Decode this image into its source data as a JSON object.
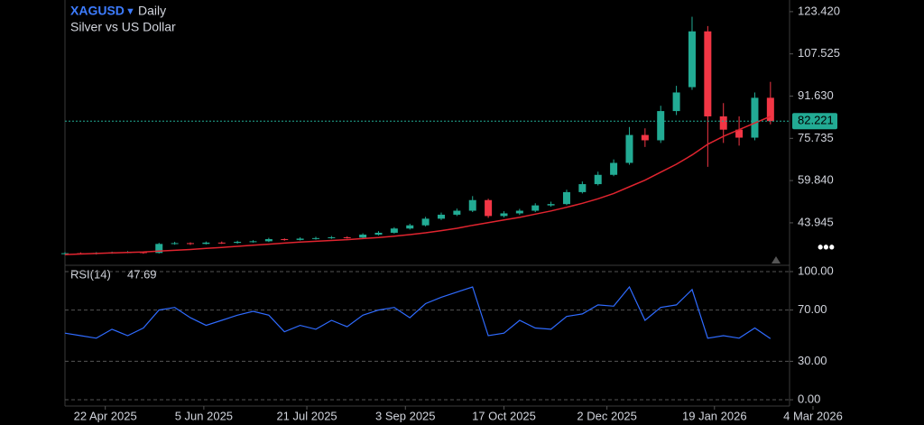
{
  "chart_data": [
    {
      "type": "candlestick",
      "title": "XAGUSD",
      "interval": "Daily",
      "subtitle": "Silver vs US Dollar",
      "x": [
        "2025-04-04",
        "2025-04-11",
        "2025-04-18",
        "2025-04-25",
        "2025-05-02",
        "2025-05-09",
        "2025-05-16",
        "2025-05-23",
        "2025-05-30",
        "2025-06-06",
        "2025-06-13",
        "2025-06-20",
        "2025-06-27",
        "2025-07-04",
        "2025-07-11",
        "2025-07-18",
        "2025-07-25",
        "2025-08-01",
        "2025-08-08",
        "2025-08-15",
        "2025-08-22",
        "2025-08-29",
        "2025-09-05",
        "2025-09-12",
        "2025-09-19",
        "2025-09-26",
        "2025-10-03",
        "2025-10-10",
        "2025-10-17",
        "2025-10-24",
        "2025-10-31",
        "2025-11-07",
        "2025-11-14",
        "2025-11-21",
        "2025-11-28",
        "2025-12-05",
        "2025-12-12",
        "2025-12-19",
        "2025-12-26",
        "2026-01-02",
        "2026-01-09",
        "2026-01-16",
        "2026-01-23",
        "2026-01-30",
        "2026-02-06",
        "2026-02-13"
      ],
      "open": [
        32.2,
        32.5,
        32.4,
        32.6,
        32.8,
        32.9,
        32.6,
        36.0,
        36.3,
        36.0,
        36.5,
        36.4,
        36.8,
        37.0,
        37.8,
        37.5,
        38.0,
        38.2,
        38.5,
        38.4,
        39.5,
        40.2,
        41.8,
        43.0,
        45.5,
        47.0,
        48.5,
        52.5,
        46.5,
        47.5,
        48.5,
        50.5,
        51.0,
        55.5,
        58.5,
        62.0,
        66.5,
        77.0,
        75.0,
        86.0,
        95.0,
        116.0,
        84.0,
        79.0,
        76.0,
        91.0
      ],
      "high": [
        32.9,
        32.8,
        32.9,
        33.1,
        33.3,
        33.2,
        36.4,
        36.8,
        36.6,
        36.9,
        36.9,
        37.2,
        37.4,
        38.3,
        38.1,
        38.5,
        38.7,
        39.0,
        38.9,
        40.0,
        40.8,
        42.3,
        43.6,
        46.2,
        47.8,
        49.3,
        54.0,
        53.0,
        48.3,
        49.2,
        51.3,
        51.9,
        56.4,
        59.5,
        63.2,
        67.8,
        80.0,
        79.5,
        88.0,
        95.5,
        121.5,
        118.0,
        89.0,
        84.0,
        93.0,
        97.0
      ],
      "low": [
        31.9,
        32.1,
        32.0,
        32.3,
        32.5,
        32.3,
        32.4,
        35.7,
        35.6,
        35.8,
        36.0,
        36.1,
        36.5,
        36.7,
        37.2,
        37.3,
        37.6,
        37.9,
        38.0,
        38.1,
        39.2,
        39.9,
        41.4,
        42.6,
        45.0,
        46.5,
        48.0,
        45.8,
        46.0,
        46.9,
        48.0,
        50.0,
        50.6,
        55.0,
        58.0,
        61.5,
        65.8,
        72.5,
        74.0,
        84.5,
        94.0,
        65.0,
        74.0,
        73.0,
        75.0,
        81.0
      ],
      "close": [
        32.5,
        32.4,
        32.6,
        32.8,
        32.9,
        32.6,
        36.0,
        36.3,
        36.0,
        36.5,
        36.4,
        36.8,
        37.0,
        37.8,
        37.5,
        38.0,
        38.2,
        38.5,
        38.4,
        39.5,
        40.2,
        41.8,
        43.0,
        45.5,
        47.0,
        48.5,
        52.5,
        46.5,
        47.5,
        48.5,
        50.5,
        51.0,
        55.5,
        58.5,
        62.0,
        66.5,
        77.0,
        75.0,
        86.0,
        93.0,
        116.0,
        84.0,
        79.0,
        76.0,
        91.0,
        82.221
      ],
      "up_color": "#22ab94",
      "down_color": "#f23645",
      "ma": {
        "color": "#e0242f",
        "values": [
          32.0,
          32.2,
          32.4,
          32.6,
          32.8,
          33.0,
          33.3,
          33.6,
          33.9,
          34.3,
          34.7,
          35.1,
          35.5,
          35.9,
          36.3,
          36.7,
          37.0,
          37.3,
          37.6,
          38.0,
          38.4,
          38.9,
          39.5,
          40.2,
          41.0,
          41.9,
          43.0,
          44.0,
          45.0,
          46.0,
          47.2,
          48.4,
          49.8,
          51.3,
          53.0,
          55.0,
          57.5,
          60.0,
          63.0,
          66.0,
          69.5,
          73.5,
          76.5,
          79.0,
          81.5,
          84.0
        ]
      },
      "xlim": [
        "2025-04-04",
        "2026-03-04"
      ],
      "ylim": [
        28.3,
        127.8
      ],
      "yticks": [
        {
          "value": 43.945,
          "label": "43.945"
        },
        {
          "value": 59.84,
          "label": "59.840"
        },
        {
          "value": 75.735,
          "label": "75.735"
        },
        {
          "value": 91.63,
          "label": "91.630"
        },
        {
          "value": 107.525,
          "label": "107.525"
        },
        {
          "value": 123.42,
          "label": "123.420"
        }
      ]
    },
    {
      "type": "line",
      "title": "RSI(14)",
      "x": [
        "2025-04-04",
        "2025-04-11",
        "2025-04-18",
        "2025-04-25",
        "2025-05-02",
        "2025-05-09",
        "2025-05-16",
        "2025-05-23",
        "2025-05-30",
        "2025-06-06",
        "2025-06-13",
        "2025-06-20",
        "2025-06-27",
        "2025-07-04",
        "2025-07-11",
        "2025-07-18",
        "2025-07-25",
        "2025-08-01",
        "2025-08-08",
        "2025-08-15",
        "2025-08-22",
        "2025-08-29",
        "2025-09-05",
        "2025-09-12",
        "2025-09-19",
        "2025-09-26",
        "2025-10-03",
        "2025-10-10",
        "2025-10-17",
        "2025-10-24",
        "2025-10-31",
        "2025-11-07",
        "2025-11-14",
        "2025-11-21",
        "2025-11-28",
        "2025-12-05",
        "2025-12-12",
        "2025-12-19",
        "2025-12-26",
        "2026-01-02",
        "2026-01-09",
        "2026-01-16",
        "2026-01-23",
        "2026-01-30",
        "2026-02-06",
        "2026-02-13"
      ],
      "values": [
        52,
        50,
        48,
        55,
        50,
        56,
        70,
        72,
        64,
        58,
        62,
        66,
        69,
        66,
        53,
        58,
        55,
        62,
        57,
        66,
        70,
        72,
        64,
        75,
        80,
        84,
        88,
        50,
        52,
        62,
        56,
        55,
        65,
        67,
        74,
        73,
        88,
        62,
        72,
        74,
        86,
        48,
        50,
        48,
        56,
        47.69
      ],
      "color": "#2f6bff",
      "xlim": [
        "2025-04-04",
        "2026-03-04"
      ],
      "ylim": [
        -4.9,
        104.2
      ],
      "yticks": [
        {
          "value": 0,
          "label": "0.00"
        },
        {
          "value": 30,
          "label": "30.00"
        },
        {
          "value": 70,
          "label": "70.00"
        },
        {
          "value": 100,
          "label": "100.00"
        }
      ],
      "xticks": [
        {
          "value": "2025-04-22",
          "label": "22 Apr 2025"
        },
        {
          "value": "2025-06-05",
          "label": "5 Jun 2025"
        },
        {
          "value": "2025-07-21",
          "label": "21 Jul 2025"
        },
        {
          "value": "2025-09-03",
          "label": "3 Sep 2025"
        },
        {
          "value": "2025-10-17",
          "label": "17 Oct 2025"
        },
        {
          "value": "2025-12-02",
          "label": "2 Dec 2025"
        },
        {
          "value": "2026-01-19",
          "label": "19 Jan 2026"
        },
        {
          "value": "2026-03-04",
          "label": "4 Mar 2026"
        }
      ]
    }
  ]
}
